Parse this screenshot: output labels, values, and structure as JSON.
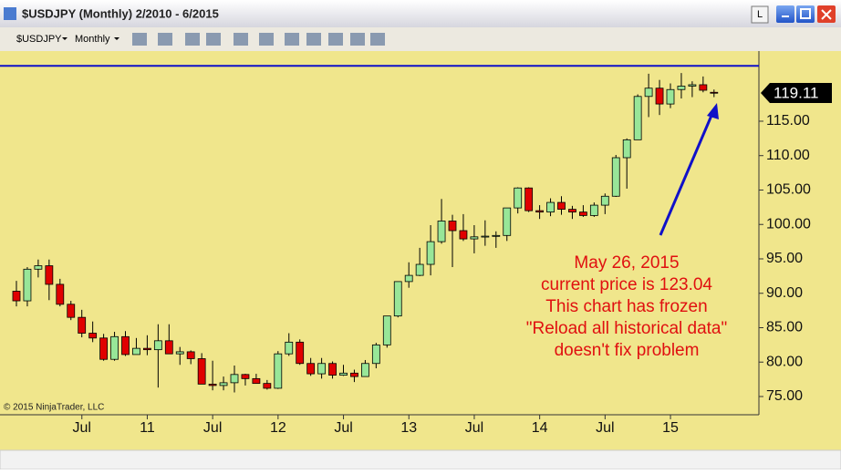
{
  "window": {
    "title": "$USDJPY (Monthly)  2/2010 - 6/2015",
    "badge": "L",
    "instrument": "$USDJPY",
    "period": "Monthly"
  },
  "copyright": "© 2015 NinjaTrader, LLC",
  "chart_data": {
    "type": "candlestick",
    "categories": [
      null,
      null,
      null,
      null,
      null,
      "Jul",
      null,
      null,
      null,
      null,
      null,
      "11",
      null,
      null,
      null,
      null,
      null,
      "Jul",
      null,
      null,
      null,
      null,
      null,
      "12",
      null,
      null,
      null,
      null,
      null,
      "Jul",
      null,
      null,
      null,
      null,
      null,
      "13",
      null,
      null,
      null,
      null,
      null,
      "Jul",
      null,
      null,
      null,
      null,
      null,
      "14",
      null,
      null,
      null,
      null,
      null,
      "Jul",
      null,
      null,
      null,
      null,
      null,
      "15",
      null,
      null,
      null,
      null,
      null
    ],
    "open": [
      90.3,
      88.9,
      93.5,
      94.0,
      91.3,
      88.4,
      86.5,
      84.2,
      83.5,
      80.4,
      83.7,
      81.1,
      82.0,
      81.8,
      83.1,
      81.2,
      81.5,
      80.5,
      76.8,
      76.6,
      77.0,
      78.2,
      77.6,
      76.9,
      76.2,
      81.2,
      82.9,
      79.8,
      78.3,
      79.8,
      78.1,
      78.4,
      77.9,
      79.8,
      82.5,
      86.7,
      91.7,
      92.6,
      94.2,
      97.5,
      100.5,
      99.1,
      97.9,
      98.2,
      98.3,
      98.4,
      102.4,
      105.3,
      102.0,
      101.8,
      103.2,
      102.2,
      101.8,
      101.3,
      102.8,
      104.1,
      109.7,
      112.3,
      118.6,
      119.8,
      117.5,
      119.6,
      120.1,
      120.3,
      119.2
    ],
    "high": [
      91.8,
      93.8,
      94.9,
      94.9,
      92.1,
      88.9,
      87.6,
      85.9,
      84.1,
      84.4,
      84.5,
      83.5,
      83.9,
      85.5,
      85.5,
      82.2,
      81.7,
      81.3,
      80.2,
      77.9,
      79.5,
      78.3,
      78.3,
      77.4,
      81.6,
      84.2,
      83.3,
      80.6,
      80.6,
      80.1,
      79.6,
      78.9,
      80.3,
      82.8,
      86.6,
      91.2,
      94.5,
      96.6,
      99.9,
      103.7,
      101.4,
      101.5,
      99.9,
      100.6,
      99.0,
      102.4,
      105.4,
      105.4,
      102.8,
      103.8,
      104.1,
      102.7,
      102.8,
      103.2,
      104.5,
      110.1,
      112.5,
      118.9,
      121.9,
      121.0,
      120.5,
      122.0,
      120.8,
      121.5,
      119.6
    ],
    "low": [
      88.1,
      88.1,
      92.3,
      89.0,
      88.1,
      86.1,
      83.6,
      82.9,
      80.2,
      80.2,
      80.9,
      81.5,
      81.0,
      76.3,
      81.3,
      79.6,
      79.7,
      76.9,
      75.9,
      75.9,
      75.6,
      76.6,
      76.9,
      76.0,
      76.1,
      80.9,
      79.6,
      78.0,
      77.6,
      77.6,
      78.0,
      77.1,
      77.9,
      79.1,
      82.1,
      86.5,
      90.8,
      92.5,
      92.6,
      97.2,
      93.8,
      97.6,
      95.8,
      96.9,
      96.6,
      97.6,
      101.6,
      101.8,
      100.8,
      101.2,
      101.4,
      100.8,
      101.1,
      101.1,
      101.5,
      104.0,
      105.2,
      112.5,
      115.6,
      115.9,
      116.9,
      118.3,
      118.5,
      119.2,
      118.5
    ],
    "close": [
      88.9,
      93.5,
      94.0,
      91.3,
      88.4,
      86.5,
      84.2,
      83.5,
      80.4,
      83.7,
      81.1,
      82.0,
      81.8,
      83.1,
      81.2,
      81.5,
      80.5,
      76.8,
      76.6,
      77.0,
      78.2,
      77.6,
      76.9,
      76.2,
      81.2,
      82.9,
      79.8,
      78.3,
      79.8,
      78.1,
      78.4,
      77.9,
      79.8,
      82.5,
      86.7,
      91.7,
      92.6,
      94.2,
      97.5,
      100.5,
      99.1,
      97.9,
      98.2,
      98.3,
      98.4,
      102.4,
      105.3,
      102.0,
      101.8,
      103.2,
      102.2,
      101.8,
      101.3,
      102.8,
      104.1,
      109.7,
      112.3,
      118.6,
      119.8,
      117.5,
      119.6,
      120.1,
      120.3,
      119.5,
      119.11
    ],
    "up_color": "#98e698",
    "down_color": "#e00000",
    "ylim": [
      72.35,
      124.4
    ],
    "yticks": [
      {
        "value": 75,
        "label": "75.00"
      },
      {
        "value": 80,
        "label": "80.00"
      },
      {
        "value": 85,
        "label": "85.00"
      },
      {
        "value": 90,
        "label": "90.00"
      },
      {
        "value": 95,
        "label": "95.00"
      },
      {
        "value": 100,
        "label": "100.00"
      },
      {
        "value": 105,
        "label": "105.00"
      },
      {
        "value": 110,
        "label": "110.00"
      },
      {
        "value": 115,
        "label": "115.00"
      }
    ],
    "last_price": 119.11,
    "reference_line": {
      "value": 123.04,
      "color": "#1010c8"
    },
    "annotation": [
      "May 26, 2015",
      "current price is 123.04",
      "This chart has frozen",
      "\"Reload all historical data\"",
      "doesn't fix problem"
    ],
    "annotation_color": "#e01010"
  }
}
